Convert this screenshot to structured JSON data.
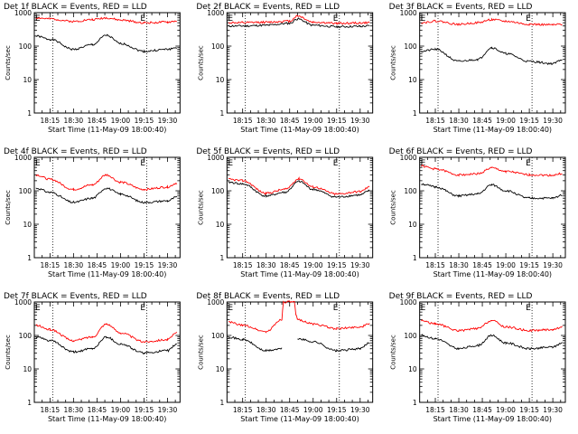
{
  "chart_data": [
    {
      "type": "line",
      "title": "Det 1f BLACK = Events, RED = LLD",
      "marker": "E",
      "xlabel": "Start Time (11-May-09 18:00:40)",
      "ylabel": "Counts/sec",
      "yscale": "log",
      "ylim": [
        1,
        1000
      ],
      "x_ticks": [
        "18:15",
        "18:30",
        "18:45",
        "19:00",
        "19:15",
        "19:30"
      ],
      "y_ticks": [
        "1",
        "10",
        "100",
        "1000"
      ],
      "event_lines": [
        "18:15",
        "19:15"
      ],
      "series": [
        {
          "color": "#000000",
          "x": [
            "18:06",
            "18:15",
            "18:30",
            "18:42",
            "18:51",
            "19:00",
            "19:15",
            "19:30",
            "19:36"
          ],
          "values": [
            200,
            160,
            80,
            110,
            210,
            120,
            70,
            80,
            90
          ]
        },
        {
          "color": "#ff0000",
          "x": [
            "18:06",
            "18:15",
            "18:30",
            "18:42",
            "18:51",
            "19:00",
            "19:15",
            "19:30",
            "19:36"
          ],
          "values": [
            700,
            650,
            550,
            620,
            700,
            600,
            500,
            520,
            560
          ]
        }
      ]
    },
    {
      "type": "line",
      "title": "Det 2f BLACK = Events, RED = LLD",
      "marker": "E",
      "xlabel": "Start Time (11-May-09 18:00:40)",
      "ylabel": "Counts/sec",
      "yscale": "log",
      "ylim": [
        1,
        1000
      ],
      "x_ticks": [
        "18:15",
        "18:30",
        "18:45",
        "19:00",
        "19:15",
        "19:30"
      ],
      "y_ticks": [
        "1",
        "10",
        "100",
        "1000"
      ],
      "event_lines": [
        "18:15",
        "19:15"
      ],
      "series": [
        {
          "color": "#000000",
          "x": [
            "18:06",
            "18:15",
            "18:30",
            "18:45",
            "18:50",
            "19:00",
            "19:15",
            "19:30",
            "19:36"
          ],
          "values": [
            400,
            400,
            420,
            480,
            650,
            420,
            380,
            390,
            400
          ]
        },
        {
          "color": "#ff0000",
          "x": [
            "18:06",
            "18:15",
            "18:30",
            "18:45",
            "18:50",
            "19:00",
            "19:15",
            "19:30",
            "19:36"
          ],
          "values": [
            500,
            500,
            520,
            560,
            800,
            520,
            480,
            490,
            500
          ]
        }
      ]
    },
    {
      "type": "line",
      "title": "Det 3f BLACK = Events, RED = LLD",
      "marker": "E",
      "xlabel": "Start Time (11-May-09 18:00:40)",
      "ylabel": "Counts/sec",
      "yscale": "log",
      "ylim": [
        1,
        1000
      ],
      "x_ticks": [
        "18:15",
        "18:30",
        "18:45",
        "19:00",
        "19:15",
        "19:30"
      ],
      "y_ticks": [
        "1",
        "10",
        "100",
        "1000"
      ],
      "event_lines": [
        "18:15",
        "19:15"
      ],
      "series": [
        {
          "color": "#000000",
          "x": [
            "18:06",
            "18:15",
            "18:30",
            "18:42",
            "18:51",
            "19:00",
            "19:15",
            "19:30",
            "19:36"
          ],
          "values": [
            70,
            80,
            35,
            40,
            90,
            60,
            35,
            30,
            40
          ]
        },
        {
          "color": "#ff0000",
          "x": [
            "18:06",
            "18:15",
            "18:30",
            "18:42",
            "18:51",
            "19:00",
            "19:15",
            "19:30",
            "19:36"
          ],
          "values": [
            500,
            560,
            450,
            500,
            620,
            550,
            450,
            430,
            450
          ]
        }
      ]
    },
    {
      "type": "line",
      "title": "Det 4f BLACK = Events, RED = LLD",
      "marker": "E",
      "xlabel": "Start Time (11-May-09 18:00:40)",
      "ylabel": "Counts/sec",
      "yscale": "log",
      "ylim": [
        1,
        1000
      ],
      "x_ticks": [
        "18:15",
        "18:30",
        "18:45",
        "19:00",
        "19:15",
        "19:30"
      ],
      "y_ticks": [
        "1",
        "10",
        "100",
        "1000"
      ],
      "event_lines": [
        "18:15",
        "19:15"
      ],
      "series": [
        {
          "color": "#000000",
          "x": [
            "18:06",
            "18:15",
            "18:30",
            "18:42",
            "18:51",
            "19:00",
            "19:15",
            "19:30",
            "19:36"
          ],
          "values": [
            120,
            90,
            45,
            60,
            120,
            80,
            45,
            50,
            65
          ]
        },
        {
          "color": "#ff0000",
          "x": [
            "18:06",
            "18:15",
            "18:30",
            "18:42",
            "18:51",
            "19:00",
            "19:15",
            "19:30",
            "19:36"
          ],
          "values": [
            300,
            220,
            110,
            150,
            300,
            180,
            110,
            130,
            170
          ]
        }
      ]
    },
    {
      "type": "line",
      "title": "Det 5f BLACK = Events, RED = LLD",
      "marker": "E",
      "xlabel": "Start Time (11-May-09 18:00:40)",
      "ylabel": "Counts/sec",
      "yscale": "log",
      "ylim": [
        1,
        1000
      ],
      "x_ticks": [
        "18:15",
        "18:30",
        "18:45",
        "19:00",
        "19:15",
        "19:30"
      ],
      "y_ticks": [
        "1",
        "10",
        "100",
        "1000"
      ],
      "event_lines": [
        "18:15",
        "19:15"
      ],
      "series": [
        {
          "color": "#000000",
          "x": [
            "18:06",
            "18:15",
            "18:30",
            "18:42",
            "18:51",
            "19:00",
            "19:15",
            "19:30",
            "19:36"
          ],
          "values": [
            180,
            160,
            70,
            90,
            190,
            110,
            65,
            75,
            100
          ]
        },
        {
          "color": "#ff0000",
          "x": [
            "18:06",
            "18:15",
            "18:30",
            "18:42",
            "18:51",
            "19:00",
            "19:15",
            "19:30",
            "19:36"
          ],
          "values": [
            220,
            200,
            85,
            110,
            230,
            130,
            80,
            95,
            130
          ]
        }
      ]
    },
    {
      "type": "line",
      "title": "Det 6f BLACK = Events, RED = LLD",
      "marker": "E",
      "xlabel": "Start Time (11-May-09 18:00:40)",
      "ylabel": "Counts/sec",
      "yscale": "log",
      "ylim": [
        1,
        1000
      ],
      "x_ticks": [
        "18:15",
        "18:30",
        "18:45",
        "19:00",
        "19:15",
        "19:30"
      ],
      "y_ticks": [
        "1",
        "10",
        "100",
        "1000"
      ],
      "event_lines": [
        "18:15",
        "19:15"
      ],
      "series": [
        {
          "color": "#000000",
          "x": [
            "18:06",
            "18:15",
            "18:30",
            "18:42",
            "18:51",
            "19:00",
            "19:15",
            "19:30",
            "19:36"
          ],
          "values": [
            160,
            130,
            70,
            80,
            150,
            100,
            60,
            60,
            75
          ]
        },
        {
          "color": "#ff0000",
          "x": [
            "18:06",
            "18:15",
            "18:30",
            "18:42",
            "18:51",
            "19:00",
            "19:15",
            "19:30",
            "19:36"
          ],
          "values": [
            550,
            450,
            300,
            320,
            480,
            380,
            300,
            290,
            330
          ]
        }
      ]
    },
    {
      "type": "line",
      "title": "Det 7f BLACK = Events, RED = LLD",
      "marker": "E",
      "xlabel": "Start Time (11-May-09 18:00:40)",
      "ylabel": "Counts/sec",
      "yscale": "log",
      "ylim": [
        1,
        1000
      ],
      "x_ticks": [
        "18:15",
        "18:30",
        "18:45",
        "19:00",
        "19:15",
        "19:30"
      ],
      "y_ticks": [
        "1",
        "10",
        "100",
        "1000"
      ],
      "event_lines": [
        "18:15",
        "19:15"
      ],
      "series": [
        {
          "color": "#000000",
          "x": [
            "18:06",
            "18:15",
            "18:30",
            "18:42",
            "18:51",
            "19:00",
            "19:15",
            "19:30",
            "19:36"
          ],
          "values": [
            90,
            70,
            32,
            40,
            90,
            55,
            30,
            35,
            55
          ]
        },
        {
          "color": "#ff0000",
          "x": [
            "18:06",
            "18:15",
            "18:30",
            "18:42",
            "18:51",
            "19:00",
            "19:15",
            "19:30",
            "19:36"
          ],
          "values": [
            200,
            150,
            70,
            90,
            220,
            120,
            65,
            75,
            120
          ]
        }
      ]
    },
    {
      "type": "line",
      "title": "Det 8f BLACK = Events, RED = LLD",
      "marker": "E",
      "xlabel": "Start Time (11-May-09 18:00:40)",
      "ylabel": "Counts/sec",
      "yscale": "log",
      "ylim": [
        1,
        1000
      ],
      "x_ticks": [
        "18:15",
        "18:30",
        "18:45",
        "19:00",
        "19:15",
        "19:30"
      ],
      "y_ticks": [
        "1",
        "10",
        "100",
        "1000"
      ],
      "event_lines": [
        "18:15",
        "19:15"
      ],
      "series": [
        {
          "color": "#000000",
          "x": [
            "18:06",
            "18:15",
            "18:30",
            "18:40",
            "18:41",
            "18:49",
            "18:50",
            "19:00",
            "19:15",
            "19:30",
            "19:36"
          ],
          "values": [
            90,
            75,
            35,
            40,
            null,
            null,
            80,
            65,
            35,
            40,
            60
          ]
        },
        {
          "color": "#ff0000",
          "x": [
            "18:06",
            "18:15",
            "18:30",
            "18:40",
            "18:41",
            "18:48",
            "18:49",
            "18:50",
            "19:00",
            "19:15",
            "19:30",
            "19:36"
          ],
          "values": [
            250,
            200,
            130,
            300,
            1000,
            1000,
            400,
            300,
            220,
            160,
            180,
            220
          ]
        }
      ]
    },
    {
      "type": "line",
      "title": "Det 9f BLACK = Events, RED = LLD",
      "marker": "E",
      "xlabel": "Start Time (11-May-09 18:00:40)",
      "ylabel": "Counts/sec",
      "yscale": "log",
      "ylim": [
        1,
        1000
      ],
      "x_ticks": [
        "18:15",
        "18:30",
        "18:45",
        "19:00",
        "19:15",
        "19:30"
      ],
      "y_ticks": [
        "1",
        "10",
        "100",
        "1000"
      ],
      "event_lines": [
        "18:15",
        "19:15"
      ],
      "series": [
        {
          "color": "#000000",
          "x": [
            "18:06",
            "18:15",
            "18:30",
            "18:42",
            "18:51",
            "19:00",
            "19:15",
            "19:30",
            "19:36"
          ],
          "values": [
            100,
            80,
            40,
            50,
            100,
            60,
            40,
            45,
            60
          ]
        },
        {
          "color": "#ff0000",
          "x": [
            "18:06",
            "18:15",
            "18:30",
            "18:42",
            "18:51",
            "19:00",
            "19:15",
            "19:30",
            "19:36"
          ],
          "values": [
            280,
            220,
            140,
            160,
            280,
            180,
            140,
            150,
            180
          ]
        }
      ]
    }
  ]
}
